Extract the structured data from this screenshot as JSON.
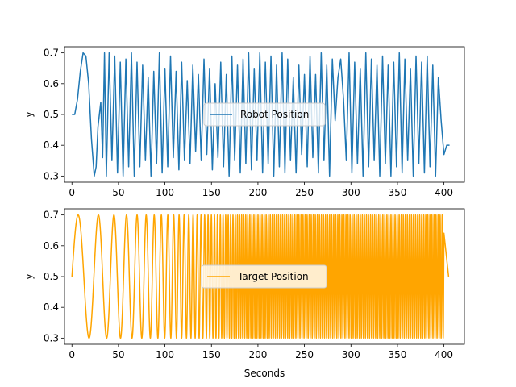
{
  "chart_data": [
    {
      "type": "line",
      "title": "",
      "xlabel": "",
      "ylabel": "y",
      "xlim": [
        -8,
        422
      ],
      "ylim": [
        0.28,
        0.72
      ],
      "xticks": [
        0,
        50,
        100,
        150,
        200,
        250,
        300,
        350,
        400
      ],
      "yticks": [
        0.3,
        0.4,
        0.5,
        0.6,
        0.7
      ],
      "legend": "center",
      "series": [
        {
          "name": "Robot Position",
          "color": "#1f77b4",
          "x": [
            0,
            3,
            6,
            9,
            12,
            15,
            18,
            21,
            24,
            26,
            28,
            31,
            33,
            35,
            37,
            40,
            43,
            46,
            49,
            52,
            55,
            58,
            61,
            64,
            67,
            70,
            73,
            76,
            79,
            82,
            85,
            88,
            91,
            94,
            97,
            100,
            103,
            106,
            109,
            112,
            115,
            118,
            121,
            124,
            127,
            130,
            133,
            136,
            139,
            142,
            145,
            148,
            151,
            154,
            157,
            160,
            163,
            166,
            169,
            172,
            175,
            178,
            181,
            184,
            187,
            190,
            193,
            196,
            199,
            202,
            205,
            208,
            211,
            214,
            217,
            220,
            223,
            226,
            229,
            232,
            235,
            238,
            241,
            244,
            247,
            250,
            253,
            256,
            259,
            262,
            265,
            268,
            271,
            274,
            277,
            280,
            283,
            286,
            289,
            292,
            295,
            298,
            301,
            304,
            307,
            310,
            313,
            316,
            319,
            322,
            325,
            328,
            331,
            334,
            337,
            340,
            343,
            346,
            349,
            352,
            355,
            358,
            361,
            364,
            367,
            370,
            373,
            376,
            379,
            382,
            385,
            388,
            391,
            394,
            397,
            400,
            403,
            406
          ],
          "y": [
            0.5,
            0.5,
            0.55,
            0.64,
            0.7,
            0.69,
            0.6,
            0.42,
            0.3,
            0.33,
            0.46,
            0.54,
            0.36,
            0.7,
            0.3,
            0.7,
            0.35,
            0.69,
            0.31,
            0.67,
            0.3,
            0.68,
            0.33,
            0.7,
            0.3,
            0.67,
            0.33,
            0.66,
            0.35,
            0.62,
            0.3,
            0.64,
            0.34,
            0.7,
            0.31,
            0.65,
            0.33,
            0.69,
            0.36,
            0.64,
            0.32,
            0.67,
            0.35,
            0.61,
            0.34,
            0.66,
            0.38,
            0.63,
            0.35,
            0.68,
            0.37,
            0.65,
            0.32,
            0.6,
            0.36,
            0.67,
            0.33,
            0.63,
            0.3,
            0.69,
            0.35,
            0.66,
            0.31,
            0.68,
            0.34,
            0.7,
            0.32,
            0.65,
            0.35,
            0.7,
            0.31,
            0.67,
            0.34,
            0.69,
            0.3,
            0.66,
            0.33,
            0.7,
            0.31,
            0.68,
            0.35,
            0.62,
            0.31,
            0.66,
            0.37,
            0.63,
            0.33,
            0.69,
            0.36,
            0.63,
            0.31,
            0.7,
            0.35,
            0.66,
            0.3,
            0.68,
            0.48,
            0.62,
            0.68,
            0.55,
            0.35,
            0.7,
            0.31,
            0.67,
            0.34,
            0.65,
            0.3,
            0.7,
            0.33,
            0.68,
            0.35,
            0.66,
            0.3,
            0.69,
            0.34,
            0.66,
            0.3,
            0.67,
            0.33,
            0.7,
            0.31,
            0.68,
            0.35,
            0.65,
            0.3,
            0.69,
            0.34,
            0.67,
            0.31,
            0.69,
            0.33,
            0.66,
            0.3,
            0.62,
            0.48,
            0.37,
            0.4,
            0.4
          ]
        }
      ]
    },
    {
      "type": "line",
      "title": "",
      "xlabel": "Seconds",
      "ylabel": "y",
      "xlim": [
        -8,
        422
      ],
      "ylim": [
        0.28,
        0.72
      ],
      "xticks": [
        0,
        50,
        100,
        150,
        200,
        250,
        300,
        350,
        400
      ],
      "yticks": [
        0.3,
        0.4,
        0.5,
        0.6,
        0.7
      ],
      "legend": "center",
      "series": [
        {
          "name": "Target Position",
          "color": "#ffa500",
          "function": "0.5 + 0.2*sin(2*pi*f(t))",
          "chirp_period_start_s": 28,
          "chirp_period_end_s": 2.2,
          "t_start": 0,
          "t_end": 400,
          "hold_value_after_end": 0.5,
          "x_end": 405
        }
      ]
    }
  ]
}
